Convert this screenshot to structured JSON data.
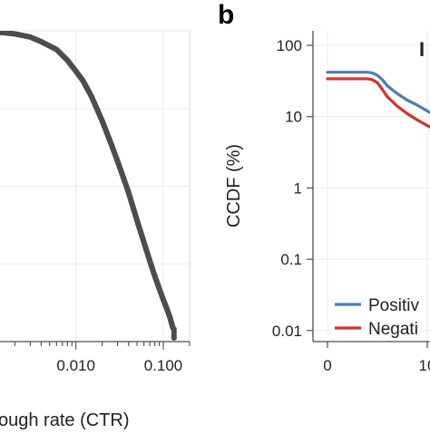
{
  "figure": {
    "panel_b_letter": "b",
    "panel_b_corner_glyph": "I"
  },
  "colors": {
    "scatter_points": "#4d4d4d",
    "positive": "#4a7db8",
    "negative": "#d2312f",
    "grid": "#ebebeb",
    "axis": "#4d4d4d"
  },
  "chart_data": [
    {
      "type": "scatter",
      "panel": "a",
      "title": "",
      "xlabel": "ough rate (CTR)",
      "ylabel": "",
      "x_scale": "log",
      "xlim": [
        0.0012,
        0.2
      ],
      "ylim": [
        0.0,
        1.0
      ],
      "grid": true,
      "x_ticks": [
        {
          "value": 0.01,
          "label": "0.010"
        },
        {
          "value": 0.1,
          "label": "0.100"
        }
      ],
      "series": [
        {
          "x": [
            0.0012,
            0.0015,
            0.002,
            0.003,
            0.004,
            0.006,
            0.008,
            0.01,
            0.012,
            0.015,
            0.02,
            0.025,
            0.03,
            0.04,
            0.05,
            0.06,
            0.07,
            0.08,
            0.09,
            0.1,
            0.11,
            0.12,
            0.13
          ],
          "y": [
            0.995,
            0.994,
            0.99,
            0.98,
            0.965,
            0.94,
            0.905,
            0.87,
            0.84,
            0.79,
            0.71,
            0.64,
            0.58,
            0.48,
            0.39,
            0.32,
            0.26,
            0.21,
            0.17,
            0.135,
            0.105,
            0.075,
            0.04
          ]
        }
      ]
    },
    {
      "type": "line",
      "panel": "b",
      "title": "",
      "xlabel": "",
      "ylabel": "CCDF (%)",
      "y_scale": "log",
      "xlim": [
        -1,
        13
      ],
      "ylim": [
        0.007,
        160
      ],
      "grid": true,
      "x_ticks": [
        {
          "value": 0,
          "label": "0"
        },
        {
          "value": 10,
          "label": "10"
        }
      ],
      "y_ticks": [
        {
          "value": 100,
          "label": "100"
        },
        {
          "value": 10,
          "label": "10"
        },
        {
          "value": 1,
          "label": "1"
        },
        {
          "value": 0.1,
          "label": "0.1"
        },
        {
          "value": 0.01,
          "label": "0.01"
        }
      ],
      "legend": {
        "position": "bottom-right"
      },
      "series": [
        {
          "name": "Positiv",
          "x": [
            0,
            1,
            2,
            3,
            4,
            4.5,
            5,
            5.5,
            6,
            7,
            8,
            9,
            10,
            11,
            12,
            13
          ],
          "y": [
            42,
            42,
            42,
            42,
            42,
            41,
            38,
            33,
            27,
            21,
            17,
            14.5,
            12,
            10,
            8,
            6.5
          ]
        },
        {
          "name": "Negati",
          "x": [
            0,
            1,
            2,
            3,
            4,
            4.5,
            5,
            5.5,
            6,
            7,
            8,
            9,
            10,
            11,
            12,
            13
          ],
          "y": [
            34,
            34,
            34,
            34,
            34,
            33,
            30,
            24,
            19,
            14,
            11,
            9,
            7.5,
            6.3,
            5.5,
            4.8
          ]
        }
      ]
    }
  ]
}
